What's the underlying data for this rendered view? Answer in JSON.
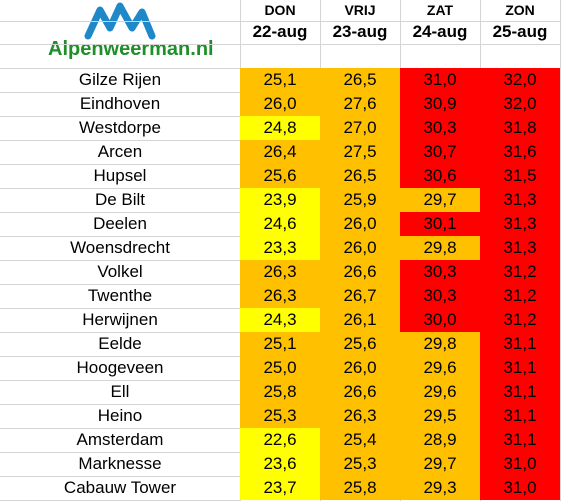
{
  "brand": {
    "logo_text": "Alpenweerman.nl"
  },
  "colors": {
    "yellow": "#ffff00",
    "orange": "#ffc000",
    "red": "#ff0000",
    "logo_blue": "#1e88c8",
    "logo_green": "#1f8f2a"
  },
  "days": [
    {
      "name": "DON",
      "date": "22-aug"
    },
    {
      "name": "VRIJ",
      "date": "23-aug"
    },
    {
      "name": "ZAT",
      "date": "24-aug"
    },
    {
      "name": "ZON",
      "date": "25-aug"
    }
  ],
  "stations": [
    {
      "name": "Gilze Rijen",
      "temps": [
        "25,1",
        "26,5",
        "31,0",
        "32,0"
      ],
      "colors": [
        "orange",
        "orange",
        "red",
        "red"
      ]
    },
    {
      "name": "Eindhoven",
      "temps": [
        "26,0",
        "27,6",
        "30,9",
        "32,0"
      ],
      "colors": [
        "orange",
        "orange",
        "red",
        "red"
      ]
    },
    {
      "name": "Westdorpe",
      "temps": [
        "24,8",
        "27,0",
        "30,3",
        "31,8"
      ],
      "colors": [
        "yellow",
        "orange",
        "red",
        "red"
      ]
    },
    {
      "name": "Arcen",
      "temps": [
        "26,4",
        "27,5",
        "30,7",
        "31,6"
      ],
      "colors": [
        "orange",
        "orange",
        "red",
        "red"
      ]
    },
    {
      "name": "Hupsel",
      "temps": [
        "25,6",
        "26,5",
        "30,6",
        "31,5"
      ],
      "colors": [
        "orange",
        "orange",
        "red",
        "red"
      ]
    },
    {
      "name": "De Bilt",
      "temps": [
        "23,9",
        "25,9",
        "29,7",
        "31,3"
      ],
      "colors": [
        "yellow",
        "orange",
        "orange",
        "red"
      ]
    },
    {
      "name": "Deelen",
      "temps": [
        "24,6",
        "26,0",
        "30,1",
        "31,3"
      ],
      "colors": [
        "yellow",
        "orange",
        "red",
        "red"
      ]
    },
    {
      "name": "Woensdrecht",
      "temps": [
        "23,3",
        "26,0",
        "29,8",
        "31,3"
      ],
      "colors": [
        "yellow",
        "orange",
        "orange",
        "red"
      ]
    },
    {
      "name": "Volkel",
      "temps": [
        "26,3",
        "26,6",
        "30,3",
        "31,2"
      ],
      "colors": [
        "orange",
        "orange",
        "red",
        "red"
      ]
    },
    {
      "name": "Twenthe",
      "temps": [
        "26,3",
        "26,7",
        "30,3",
        "31,2"
      ],
      "colors": [
        "orange",
        "orange",
        "red",
        "red"
      ]
    },
    {
      "name": "Herwijnen",
      "temps": [
        "24,3",
        "26,1",
        "30,0",
        "31,2"
      ],
      "colors": [
        "yellow",
        "orange",
        "red",
        "red"
      ]
    },
    {
      "name": "Eelde",
      "temps": [
        "25,1",
        "25,6",
        "29,8",
        "31,1"
      ],
      "colors": [
        "orange",
        "orange",
        "orange",
        "red"
      ]
    },
    {
      "name": "Hoogeveen",
      "temps": [
        "25,0",
        "26,0",
        "29,6",
        "31,1"
      ],
      "colors": [
        "orange",
        "orange",
        "orange",
        "red"
      ]
    },
    {
      "name": "Ell",
      "temps": [
        "25,8",
        "26,6",
        "29,6",
        "31,1"
      ],
      "colors": [
        "orange",
        "orange",
        "orange",
        "red"
      ]
    },
    {
      "name": "Heino",
      "temps": [
        "25,3",
        "26,3",
        "29,5",
        "31,1"
      ],
      "colors": [
        "orange",
        "orange",
        "orange",
        "red"
      ]
    },
    {
      "name": "Amsterdam",
      "temps": [
        "22,6",
        "25,4",
        "28,9",
        "31,1"
      ],
      "colors": [
        "yellow",
        "orange",
        "orange",
        "red"
      ]
    },
    {
      "name": "Marknesse",
      "temps": [
        "23,6",
        "25,3",
        "29,7",
        "31,0"
      ],
      "colors": [
        "yellow",
        "orange",
        "orange",
        "red"
      ]
    },
    {
      "name": "Cabauw Tower",
      "temps": [
        "23,7",
        "25,8",
        "29,3",
        "31,0"
      ],
      "colors": [
        "yellow",
        "orange",
        "orange",
        "red"
      ]
    }
  ]
}
